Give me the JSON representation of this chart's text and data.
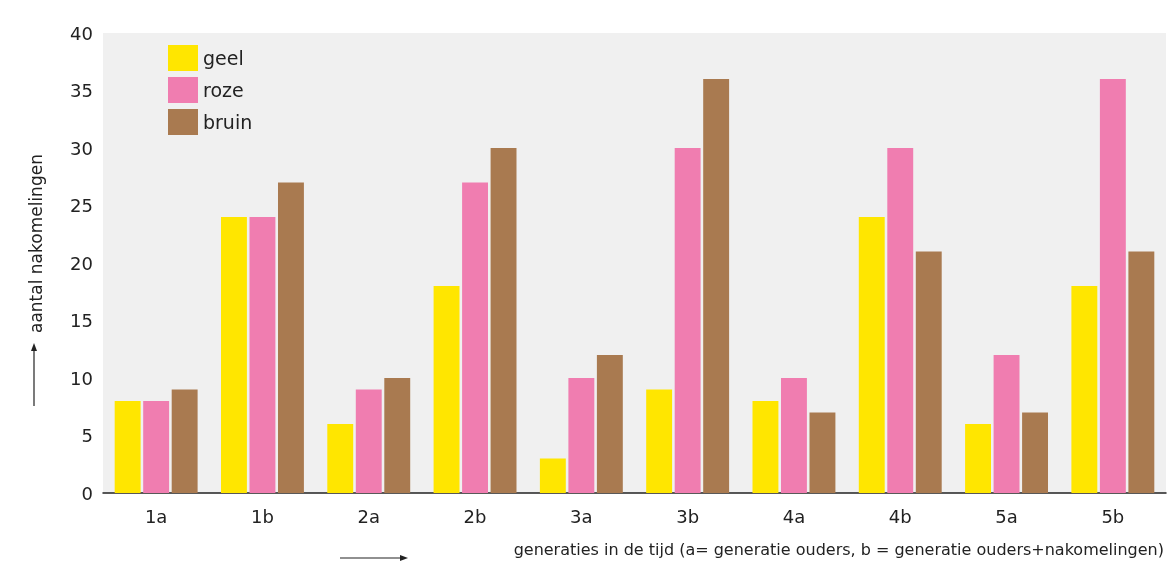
{
  "chart_data": {
    "type": "bar",
    "xlabel": "generaties in de tijd (a= generatie ouders, b = generatie ouders+nakomelingen)",
    "ylabel": "aantal nakomelingen",
    "categories": [
      "1a",
      "1b",
      "2a",
      "2b",
      "3a",
      "3b",
      "4a",
      "4b",
      "5a",
      "5b"
    ],
    "series": [
      {
        "name": "geel",
        "color": "#ffe600",
        "values": [
          8,
          24,
          6,
          18,
          3,
          9,
          8,
          24,
          6,
          18
        ]
      },
      {
        "name": "roze",
        "color": "#f07db0",
        "values": [
          8,
          24,
          9,
          27,
          10,
          30,
          10,
          30,
          12,
          36
        ]
      },
      {
        "name": "bruin",
        "color": "#a97a50",
        "values": [
          9,
          27,
          10,
          30,
          12,
          36,
          7,
          21,
          7,
          21
        ]
      }
    ],
    "ylim": [
      0,
      40
    ],
    "yticks": [
      0,
      5,
      10,
      15,
      20,
      25,
      30,
      35,
      40
    ],
    "grid": false,
    "legend": "top left"
  }
}
